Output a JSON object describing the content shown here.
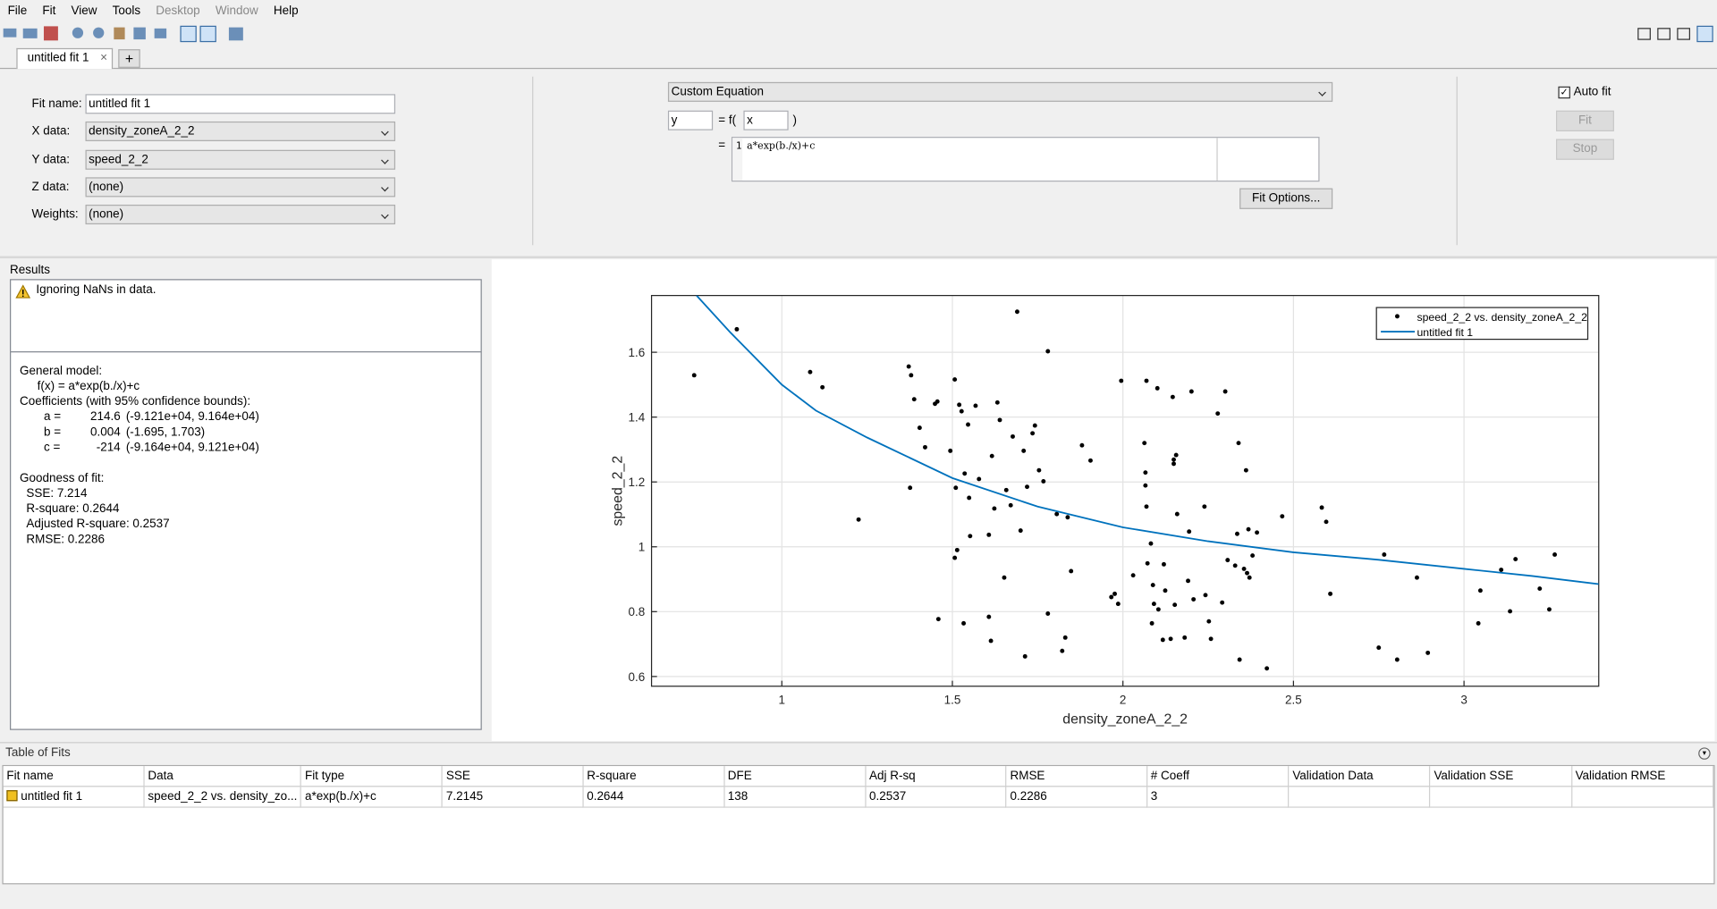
{
  "menu": [
    "File",
    "Fit",
    "View",
    "Tools",
    "Desktop",
    "Window",
    "Help"
  ],
  "tabs": {
    "active": "untitled fit 1",
    "new_tab": "+"
  },
  "fit_settings": {
    "fields": [
      {
        "label": "Fit name:",
        "value": "untitled fit 1"
      },
      {
        "label": "X data:",
        "value": "density_zoneA_2_2"
      },
      {
        "label": "Y data:",
        "value": "speed_2_2"
      },
      {
        "label": "Z data:",
        "value": "(none)"
      },
      {
        "label": "Weights:",
        "value": "(none)"
      }
    ]
  },
  "equation": {
    "type": "Custom Equation",
    "y": "y",
    "f_open": "= f(",
    "x": "x",
    "f_close": ")",
    "equals": "=",
    "line_number": "1",
    "expression": "a*exp(b./x)+c",
    "fit_options": "Fit Options..."
  },
  "controls": {
    "auto_fit": "Auto fit",
    "fit": "Fit",
    "stop": "Stop"
  },
  "results": {
    "title": "Results",
    "warning": "Ignoring NaNs in data.",
    "model_heading": "General model:",
    "model": "f(x) = a*exp(b./x)+c",
    "coef_heading": "Coefficients (with 95% confidence bounds):",
    "coefficients": [
      {
        "name": "a =",
        "value": "214.6",
        "bounds": "(-9.121e+04, 9.164e+04)"
      },
      {
        "name": "b =",
        "value": "0.004",
        "bounds": "(-1.695, 1.703)"
      },
      {
        "name": "c =",
        "value": "-214",
        "bounds": "(-9.164e+04, 9.121e+04)"
      }
    ],
    "gof_heading": "Goodness of fit:",
    "gof": [
      "SSE: 7.214",
      "R-square: 0.2644",
      "Adjusted R-square: 0.2537",
      "RMSE: 0.2286"
    ]
  },
  "chart_data": {
    "type": "scatter",
    "x_label": "density_zoneA_2_2",
    "y_label": "speed_2_2",
    "xlim": [
      0.618,
      3.395
    ],
    "ylim": [
      0.57,
      1.775
    ],
    "xticks": [
      1,
      1.5,
      2,
      2.5,
      3
    ],
    "yticks": [
      0.6,
      0.8,
      1,
      1.2,
      1.4,
      1.6
    ],
    "grid": true,
    "legend": "upper right",
    "series": [
      {
        "name": "speed_2_2 vs. density_zoneA_2_2",
        "color": "#000000",
        "mark": "dot",
        "x": [
          0.743,
          0.868,
          1.083,
          1.119,
          1.225,
          1.372,
          1.379,
          1.376,
          1.388,
          1.404,
          1.42,
          1.449,
          1.456,
          1.459,
          1.494,
          1.507,
          1.507,
          1.514,
          1.51,
          1.52,
          1.527,
          1.533,
          1.536,
          1.546,
          1.549,
          1.552,
          1.568,
          1.578,
          1.607,
          1.607,
          1.613,
          1.616,
          1.623,
          1.632,
          1.639,
          1.652,
          1.658,
          1.671,
          1.677,
          1.69,
          1.7,
          1.713,
          1.709,
          1.719,
          1.735,
          1.742,
          1.754,
          1.767,
          1.78,
          1.78,
          1.806,
          1.822,
          1.831,
          1.838,
          1.848,
          1.88,
          1.905,
          1.966,
          1.976,
          1.986,
          1.995,
          2.03,
          2.063,
          2.066,
          2.066,
          2.069,
          2.069,
          2.072,
          2.082,
          2.085,
          2.088,
          2.091,
          2.101,
          2.104,
          2.117,
          2.124,
          2.12,
          2.14,
          2.146,
          2.149,
          2.149,
          2.152,
          2.156,
          2.159,
          2.181,
          2.191,
          2.201,
          2.194,
          2.207,
          2.239,
          2.242,
          2.252,
          2.258,
          2.278,
          2.291,
          2.3,
          2.307,
          2.329,
          2.335,
          2.339,
          2.342,
          2.355,
          2.361,
          2.364,
          2.368,
          2.371,
          2.38,
          2.393,
          2.422,
          2.467,
          2.583,
          2.596,
          2.608,
          2.75,
          2.766,
          2.804,
          2.862,
          2.894,
          3.042,
          3.048,
          3.109,
          3.135,
          3.151,
          3.222,
          3.25,
          3.266
        ],
        "values": [
          1.529,
          1.671,
          1.539,
          1.492,
          1.084,
          1.556,
          1.529,
          1.182,
          1.455,
          1.367,
          1.307,
          1.441,
          1.448,
          0.777,
          1.296,
          1.516,
          0.966,
          0.99,
          1.182,
          1.438,
          1.418,
          0.764,
          1.226,
          1.377,
          1.151,
          1.033,
          1.435,
          1.209,
          0.784,
          1.037,
          0.71,
          1.28,
          1.118,
          1.445,
          1.391,
          0.905,
          1.175,
          1.128,
          1.34,
          1.725,
          1.05,
          0.662,
          1.296,
          1.185,
          1.35,
          1.374,
          1.236,
          1.202,
          0.794,
          1.603,
          1.101,
          0.679,
          0.72,
          1.091,
          0.925,
          1.313,
          1.266,
          0.845,
          0.855,
          0.824,
          1.512,
          0.912,
          1.32,
          1.229,
          1.189,
          1.512,
          1.124,
          0.949,
          1.01,
          0.764,
          0.882,
          0.824,
          1.489,
          0.807,
          0.713,
          0.865,
          0.946,
          0.716,
          1.462,
          1.256,
          1.269,
          0.821,
          1.283,
          1.101,
          0.72,
          0.895,
          1.479,
          1.047,
          0.838,
          1.124,
          0.851,
          0.77,
          0.716,
          1.411,
          0.828,
          1.479,
          0.959,
          0.942,
          1.04,
          1.32,
          0.652,
          0.932,
          1.236,
          0.919,
          1.054,
          0.905,
          0.973,
          1.044,
          0.625,
          1.094,
          1.121,
          1.077,
          0.855,
          0.689,
          0.976,
          0.652,
          0.905,
          0.673,
          0.764,
          0.865,
          0.929,
          0.801,
          0.962,
          0.871,
          0.807,
          0.976
        ]
      },
      {
        "name": "untitled fit 1",
        "color": "#0072bd",
        "mark": "line",
        "x": [
          0.75,
          0.85,
          1,
          1.1,
          1.25,
          1.5,
          1.75,
          2,
          2.25,
          2.5,
          2.75,
          3,
          3.2,
          3.395
        ],
        "values": [
          1.775,
          1.66,
          1.5,
          1.42,
          1.337,
          1.212,
          1.124,
          1.06,
          1.017,
          0.983,
          0.96,
          0.932,
          0.91,
          0.885
        ]
      }
    ]
  },
  "table": {
    "title": "Table of Fits",
    "columns": [
      "Fit name",
      "Data",
      "Fit type",
      "SSE",
      "R-square",
      "DFE",
      "Adj R-sq",
      "RMSE",
      "# Coeff",
      "Validation Data",
      "Validation SSE",
      "Validation RMSE"
    ],
    "rows": [
      [
        "untitled fit 1",
        "speed_2_2 vs. density_zo...",
        "a*exp(b./x)+c",
        "7.2145",
        "0.2644",
        "138",
        "0.2537",
        "0.2286",
        "3",
        "",
        "",
        ""
      ]
    ]
  }
}
